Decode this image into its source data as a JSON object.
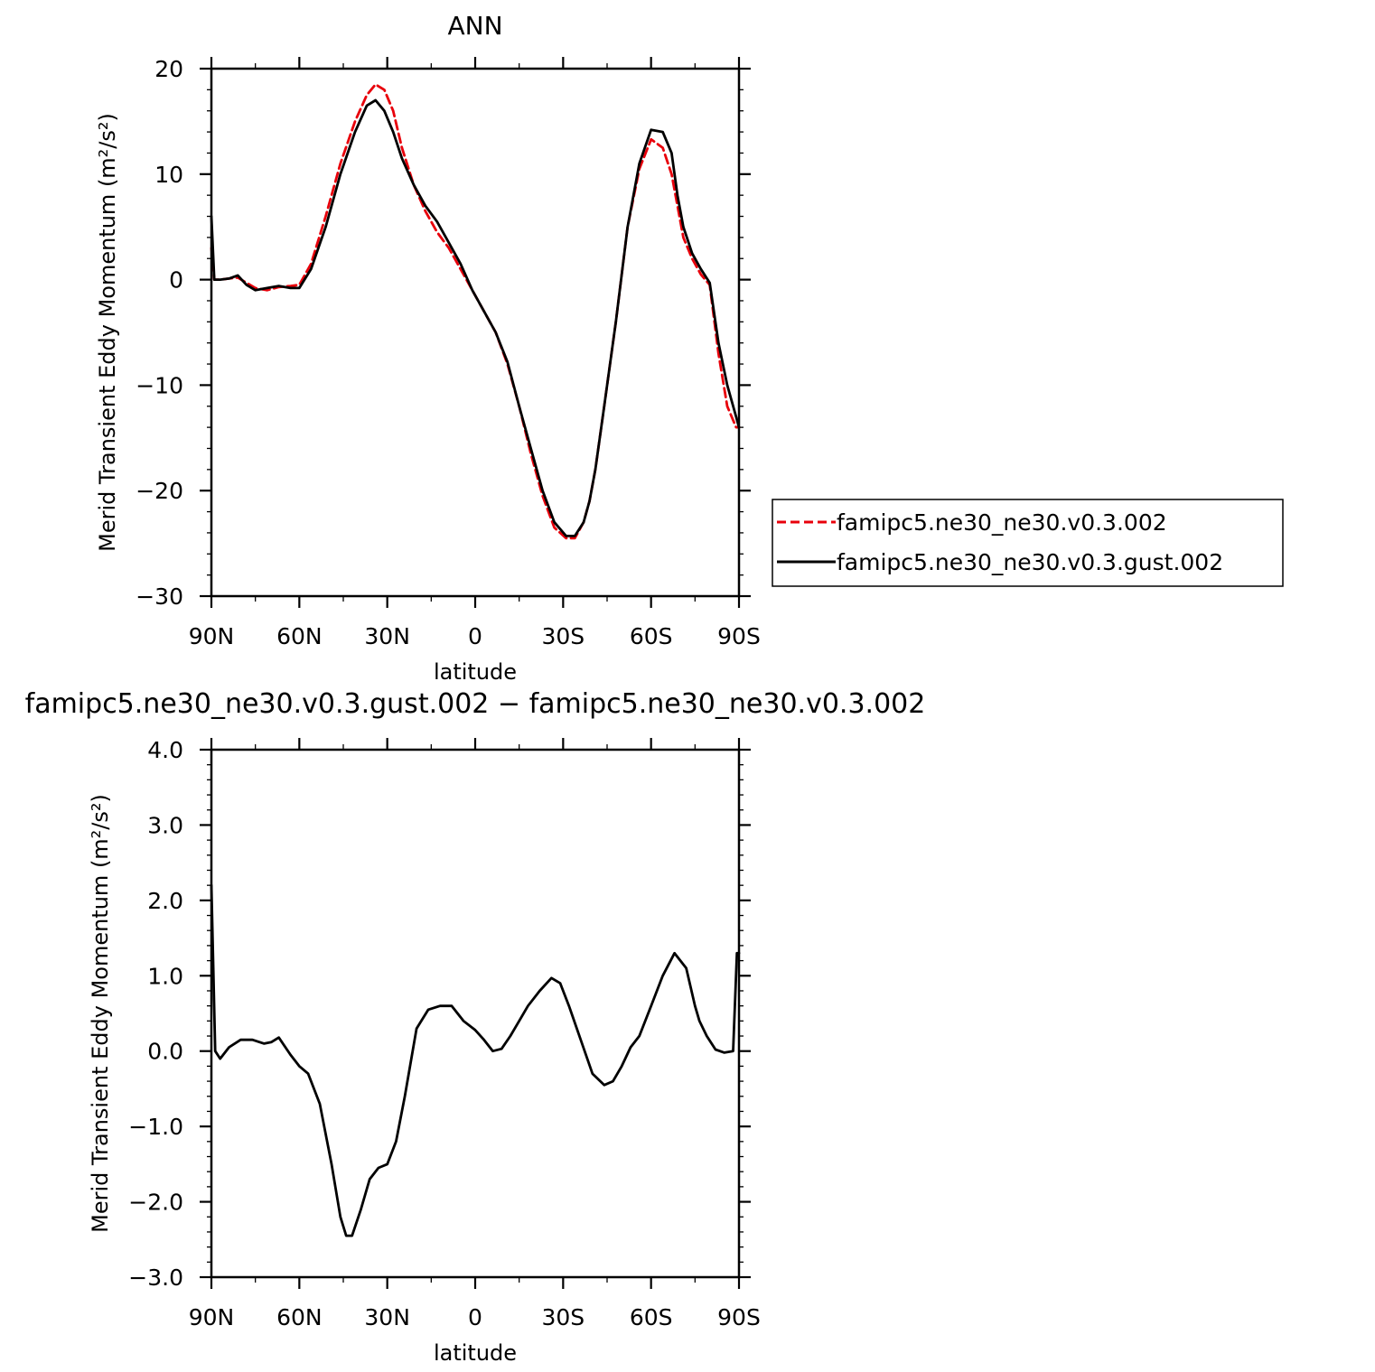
{
  "chart_data": [
    {
      "type": "line",
      "title": "ANN",
      "xlabel": "latitude",
      "ylabel": "Merid Transient Eddy Momentum (m²/s²)",
      "xlim": [
        90,
        -90
      ],
      "ylim": [
        -30,
        20
      ],
      "x_ticks": [
        90,
        60,
        30,
        0,
        -30,
        -60,
        -90
      ],
      "x_tick_labels": [
        "90N",
        "60N",
        "30N",
        "0",
        "30S",
        "60S",
        "90S"
      ],
      "y_ticks": [
        -30,
        -20,
        -10,
        0,
        10,
        20
      ],
      "y_tick_labels": [
        "−30",
        "−20",
        "−10",
        "0",
        "10",
        "20"
      ],
      "legend": "right, outside plot",
      "series": [
        {
          "name": "famipc5.ne30_ne30.v0.3.002",
          "color": "#e8000b",
          "dash": "dashed",
          "x": [
            90,
            89,
            87,
            84,
            81,
            78,
            75,
            71,
            67,
            63,
            60,
            56,
            51,
            46,
            41,
            37,
            34,
            31,
            28,
            25,
            21,
            17,
            13,
            9,
            5,
            1,
            -3,
            -7,
            -11,
            -15,
            -19,
            -23,
            -27,
            -31,
            -34,
            -37,
            -39,
            -41,
            -44,
            -48,
            -52,
            -56,
            -60,
            -64,
            -67,
            -69,
            -71,
            -74,
            -77,
            -80,
            -83,
            -86,
            -89,
            -90
          ],
          "y": [
            3,
            0,
            0,
            0.1,
            0.2,
            -0.3,
            -0.8,
            -1,
            -0.7,
            -0.6,
            -0.5,
            1.5,
            6,
            11,
            15,
            17.5,
            18.5,
            18,
            16,
            12.5,
            9,
            6.5,
            4.5,
            3,
            1,
            -1,
            -3,
            -5,
            -8,
            -12,
            -16.5,
            -20.5,
            -23.5,
            -24.5,
            -24.5,
            -23,
            -21,
            -18,
            -12,
            -4,
            5,
            10.5,
            13.3,
            12.5,
            10,
            7,
            4,
            2,
            0.5,
            -0.5,
            -7,
            -12,
            -14,
            -14
          ]
        },
        {
          "name": "famipc5.ne30_ne30.v0.3.gust.002",
          "color": "#000000",
          "dash": "solid",
          "x": [
            90,
            89,
            87,
            84,
            81,
            78,
            75,
            71,
            67,
            63,
            60,
            56,
            51,
            46,
            41,
            37,
            34,
            31,
            28,
            25,
            21,
            17,
            13,
            9,
            5,
            1,
            -3,
            -7,
            -11,
            -15,
            -19,
            -23,
            -27,
            -31,
            -34,
            -37,
            -39,
            -41,
            -44,
            -48,
            -52,
            -56,
            -60,
            -64,
            -67,
            -69,
            -71,
            -74,
            -77,
            -80,
            -83,
            -86,
            -89,
            -90
          ],
          "y": [
            6,
            0,
            0,
            0.1,
            0.4,
            -0.5,
            -1,
            -0.8,
            -0.6,
            -0.8,
            -0.8,
            1,
            5,
            10,
            14,
            16.5,
            17,
            16,
            14,
            11.5,
            9,
            7,
            5.5,
            3.5,
            1.5,
            -1,
            -3,
            -5,
            -7.8,
            -12,
            -16,
            -20,
            -23,
            -24.3,
            -24.3,
            -23,
            -21,
            -18,
            -12,
            -4,
            5,
            11,
            14.2,
            14,
            12,
            8,
            5,
            2.5,
            1,
            -0.3,
            -6,
            -10,
            -13,
            -14
          ]
        }
      ]
    },
    {
      "type": "line",
      "title": "famipc5.ne30_ne30.v0.3.gust.002 − famipc5.ne30_ne30.v0.3.002",
      "xlabel": "latitude",
      "ylabel": "Merid Transient Eddy Momentum (m²/s²)",
      "xlim": [
        90,
        -90
      ],
      "ylim": [
        -3,
        4
      ],
      "x_ticks": [
        90,
        60,
        30,
        0,
        -30,
        -60,
        -90
      ],
      "x_tick_labels": [
        "90N",
        "60N",
        "30N",
        "0",
        "30S",
        "60S",
        "90S"
      ],
      "y_ticks": [
        -3,
        -2,
        -1,
        0,
        1,
        2,
        3,
        4
      ],
      "y_tick_labels": [
        "−3.0",
        "−2.0",
        "−1.0",
        "0.0",
        "1.0",
        "2.0",
        "3.0",
        "4.0"
      ],
      "series": [
        {
          "color": "#000000",
          "dash": "solid",
          "x": [
            90,
            88.7,
            87,
            84,
            80,
            76,
            72,
            69.5,
            67,
            63,
            60,
            57,
            53,
            49,
            46,
            44,
            42,
            39,
            36,
            33,
            30,
            27,
            24,
            20,
            16,
            12,
            8,
            4,
            0,
            -3,
            -6,
            -9,
            -12,
            -15,
            -18,
            -22,
            -26,
            -29,
            -32,
            -36,
            -40,
            -44,
            -47,
            -50,
            -53,
            -56,
            -60,
            -64,
            -68,
            -72,
            -75,
            -76.5,
            -79,
            -82,
            -85,
            -88,
            -89.3,
            -90
          ],
          "y": [
            2.2,
            0,
            -0.1,
            0.05,
            0.15,
            0.15,
            0.1,
            0.12,
            0.18,
            -0.05,
            -0.2,
            -0.3,
            -0.7,
            -1.5,
            -2.2,
            -2.45,
            -2.45,
            -2.1,
            -1.7,
            -1.55,
            -1.5,
            -1.2,
            -0.6,
            0.3,
            0.55,
            0.6,
            0.6,
            0.4,
            0.28,
            0.15,
            0,
            0.03,
            0.2,
            0.4,
            0.6,
            0.8,
            0.97,
            0.9,
            0.6,
            0.15,
            -0.3,
            -0.45,
            -0.4,
            -0.2,
            0.05,
            0.2,
            0.6,
            1.0,
            1.3,
            1.1,
            0.6,
            0.4,
            0.2,
            0.02,
            -0.02,
            0,
            1.3,
            1.3
          ]
        }
      ]
    }
  ]
}
